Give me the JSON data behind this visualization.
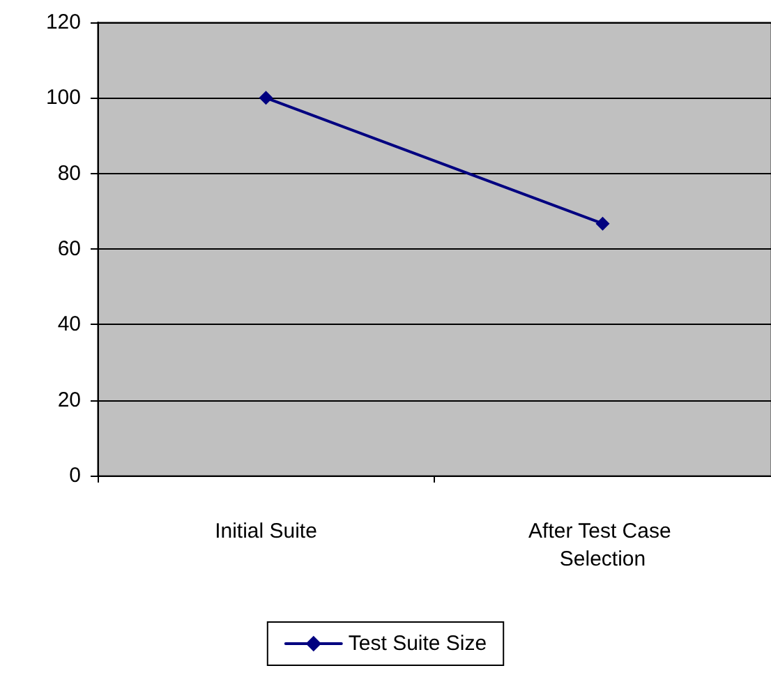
{
  "chart_data": {
    "type": "line",
    "categories": [
      "Initial Suite",
      "After Test Case Selection"
    ],
    "series": [
      {
        "name": "Test Suite Size",
        "color": "#000080",
        "values": [
          100,
          66.7
        ]
      }
    ],
    "ylim": [
      0,
      120
    ],
    "yticks": [
      0,
      20,
      40,
      60,
      80,
      100,
      120
    ],
    "grid": "y",
    "legend": "bottom",
    "marker": "diamond",
    "line_style": "solid"
  }
}
